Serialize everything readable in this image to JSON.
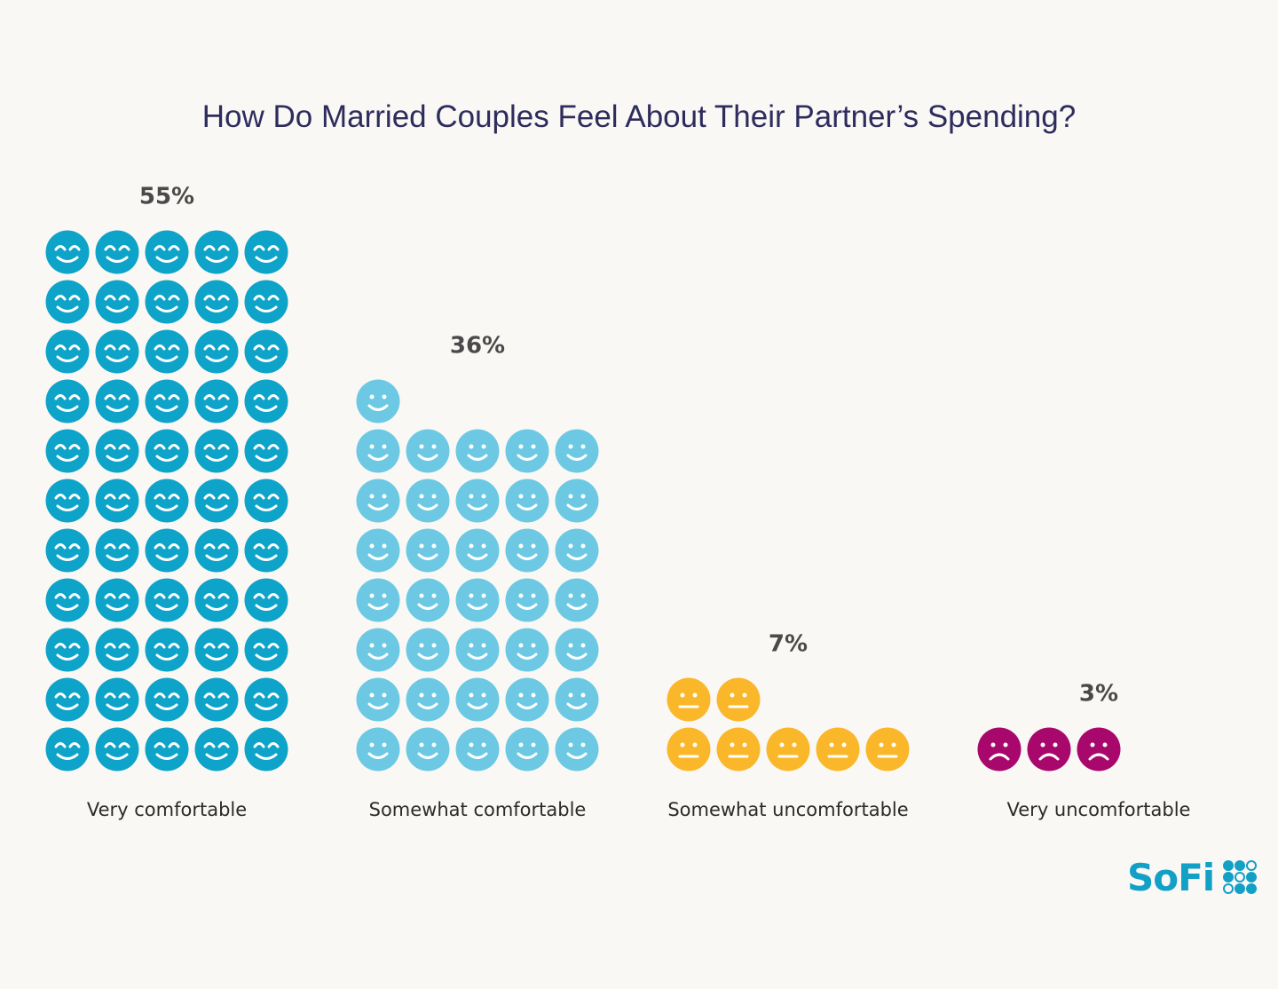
{
  "chart_data": {
    "type": "pictogram",
    "title": "How Do Married Couples Feel About Their Partner’s Spending?",
    "icons_per_row": 5,
    "categories": [
      "Very comfortable",
      "Somewhat comfortable",
      "Somewhat uncomfortable",
      "Very uncomfortable"
    ],
    "values": [
      55,
      36,
      7,
      3
    ],
    "value_labels": [
      "55%",
      "36%",
      "7%",
      "3%"
    ],
    "icon_faces": [
      "big-smile",
      "smile",
      "neutral",
      "frown"
    ],
    "colors": [
      "#0ea3c9",
      "#6dc9e3",
      "#fbb72a",
      "#a8086b"
    ]
  },
  "brand": {
    "logo": "SoFi",
    "color": "#12a0c6"
  }
}
